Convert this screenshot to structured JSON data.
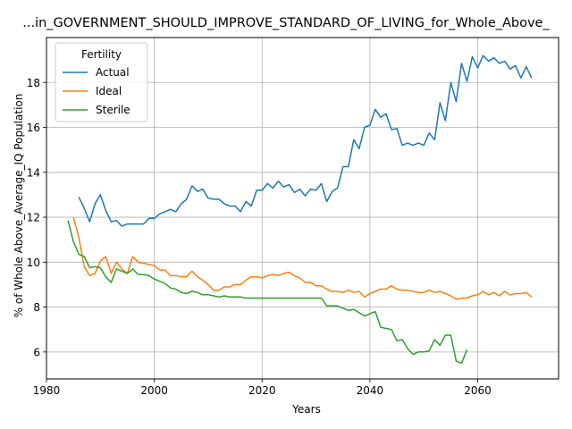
{
  "chart_data": {
    "type": "line",
    "title": "...in_GOVERNMENT_SHOULD_IMPROVE_STANDARD_OF_LIVING_for_Whole_Above_",
    "xlabel": "Years",
    "ylabel": "% of Whole Above_Average_IQ Population",
    "xlim": [
      1980,
      2075
    ],
    "ylim": [
      4.8,
      20.0
    ],
    "xticks": [
      1980,
      2000,
      2020,
      2040,
      2060
    ],
    "yticks": [
      6,
      8,
      10,
      12,
      14,
      16,
      18
    ],
    "grid": true,
    "legend": {
      "title": "Fertility",
      "placement": "top-left"
    },
    "series": [
      {
        "name": "Actual",
        "color": "#1f77b4",
        "x": [
          1986,
          1987,
          1988,
          1989,
          1990,
          1991,
          1992,
          1993,
          1994,
          1995,
          1996,
          1997,
          1998,
          1999,
          2000,
          2001,
          2002,
          2003,
          2004,
          2005,
          2006,
          2007,
          2008,
          2009,
          2010,
          2011,
          2012,
          2013,
          2014,
          2015,
          2016,
          2017,
          2018,
          2019,
          2020,
          2021,
          2022,
          2023,
          2024,
          2025,
          2026,
          2027,
          2028,
          2029,
          2030,
          2031,
          2032,
          2033,
          2034,
          2035,
          2036,
          2037,
          2038,
          2039,
          2040,
          2041,
          2042,
          2043,
          2044,
          2045,
          2046,
          2047,
          2048,
          2049,
          2050,
          2051,
          2052,
          2053,
          2054,
          2055,
          2056,
          2057,
          2058,
          2059,
          2060,
          2061,
          2062,
          2063,
          2064,
          2065,
          2066,
          2067,
          2068,
          2069,
          2070
        ],
        "y": [
          12.9,
          12.4,
          11.8,
          12.6,
          13.0,
          12.3,
          11.8,
          11.85,
          11.6,
          11.7,
          11.7,
          11.7,
          11.7,
          11.95,
          11.95,
          12.15,
          12.25,
          12.35,
          12.25,
          12.6,
          12.8,
          13.4,
          13.15,
          13.25,
          12.85,
          12.8,
          12.8,
          12.6,
          12.5,
          12.5,
          12.25,
          12.7,
          12.5,
          13.2,
          13.2,
          13.5,
          13.3,
          13.6,
          13.35,
          13.45,
          13.1,
          13.25,
          12.95,
          13.25,
          13.2,
          13.5,
          12.7,
          13.15,
          13.3,
          14.25,
          14.25,
          15.45,
          15.05,
          16.0,
          16.1,
          16.8,
          16.45,
          16.6,
          15.9,
          15.95,
          15.2,
          15.3,
          15.2,
          15.3,
          15.2,
          15.75,
          15.45,
          17.1,
          16.3,
          18.0,
          17.15,
          18.85,
          18.05,
          19.15,
          18.65,
          19.2,
          18.95,
          19.1,
          18.85,
          18.95,
          18.6,
          18.75,
          18.2,
          18.7,
          18.2
        ]
      },
      {
        "name": "Ideal",
        "color": "#ff7f0e",
        "x": [
          1985,
          1986,
          1987,
          1988,
          1989,
          1990,
          1991,
          1992,
          1993,
          1994,
          1995,
          1996,
          1997,
          1998,
          1999,
          2000,
          2001,
          2002,
          2003,
          2004,
          2005,
          2006,
          2007,
          2008,
          2009,
          2010,
          2011,
          2012,
          2013,
          2014,
          2015,
          2016,
          2017,
          2018,
          2019,
          2020,
          2021,
          2022,
          2023,
          2024,
          2025,
          2026,
          2027,
          2028,
          2029,
          2030,
          2031,
          2032,
          2033,
          2034,
          2035,
          2036,
          2037,
          2038,
          2039,
          2040,
          2041,
          2042,
          2043,
          2044,
          2045,
          2046,
          2047,
          2048,
          2049,
          2050,
          2051,
          2052,
          2053,
          2054,
          2055,
          2056,
          2057,
          2058,
          2059,
          2060,
          2061,
          2062,
          2063,
          2064,
          2065,
          2066,
          2067,
          2068,
          2069,
          2070
        ],
        "y": [
          12.0,
          11.1,
          9.8,
          9.4,
          9.5,
          10.05,
          10.25,
          9.5,
          10.0,
          9.7,
          9.5,
          10.25,
          10.0,
          9.95,
          9.9,
          9.85,
          9.65,
          9.65,
          9.4,
          9.4,
          9.35,
          9.35,
          9.6,
          9.35,
          9.2,
          9.0,
          8.75,
          8.75,
          8.9,
          8.9,
          9.0,
          9.0,
          9.2,
          9.35,
          9.35,
          9.3,
          9.4,
          9.45,
          9.4,
          9.5,
          9.55,
          9.4,
          9.3,
          9.1,
          9.1,
          8.95,
          8.95,
          8.8,
          8.7,
          8.7,
          8.65,
          8.75,
          8.65,
          8.7,
          8.45,
          8.6,
          8.7,
          8.8,
          8.8,
          8.95,
          8.8,
          8.75,
          8.75,
          8.7,
          8.65,
          8.65,
          8.75,
          8.65,
          8.7,
          8.6,
          8.5,
          8.35,
          8.4,
          8.4,
          8.5,
          8.55,
          8.7,
          8.55,
          8.65,
          8.5,
          8.7,
          8.55,
          8.6,
          8.6,
          8.65,
          8.45
        ]
      },
      {
        "name": "Sterile",
        "color": "#2ca02c",
        "x": [
          1984,
          1985,
          1986,
          1987,
          1988,
          1989,
          1990,
          1991,
          1992,
          1993,
          1994,
          1995,
          1996,
          1997,
          1998,
          1999,
          2000,
          2001,
          2002,
          2003,
          2004,
          2005,
          2006,
          2007,
          2008,
          2009,
          2010,
          2011,
          2012,
          2013,
          2014,
          2015,
          2016,
          2017,
          2018,
          2019,
          2020,
          2021,
          2022,
          2023,
          2024,
          2025,
          2026,
          2027,
          2028,
          2029,
          2030,
          2031,
          2032,
          2033,
          2034,
          2035,
          2036,
          2037,
          2038,
          2039,
          2040,
          2041,
          2042,
          2043,
          2044,
          2045,
          2046,
          2047,
          2048,
          2049,
          2050,
          2051,
          2052,
          2053,
          2054,
          2055,
          2056,
          2057,
          2058
        ],
        "y": [
          11.85,
          10.9,
          10.35,
          10.25,
          9.75,
          9.8,
          9.75,
          9.35,
          9.1,
          9.7,
          9.6,
          9.5,
          9.7,
          9.45,
          9.45,
          9.4,
          9.25,
          9.15,
          9.05,
          8.85,
          8.8,
          8.65,
          8.6,
          8.7,
          8.65,
          8.55,
          8.55,
          8.5,
          8.45,
          8.5,
          8.45,
          8.45,
          8.45,
          8.4,
          8.4,
          8.4,
          8.4,
          8.4,
          8.4,
          8.4,
          8.4,
          8.4,
          8.4,
          8.4,
          8.4,
          8.4,
          8.4,
          8.4,
          8.05,
          8.05,
          8.05,
          7.95,
          7.85,
          7.9,
          7.75,
          7.6,
          7.7,
          7.8,
          7.1,
          7.05,
          7.0,
          6.5,
          6.55,
          6.15,
          5.9,
          6.0,
          6.0,
          6.05,
          6.55,
          6.3,
          6.75,
          6.75,
          5.6,
          5.5,
          6.1
        ]
      }
    ]
  }
}
